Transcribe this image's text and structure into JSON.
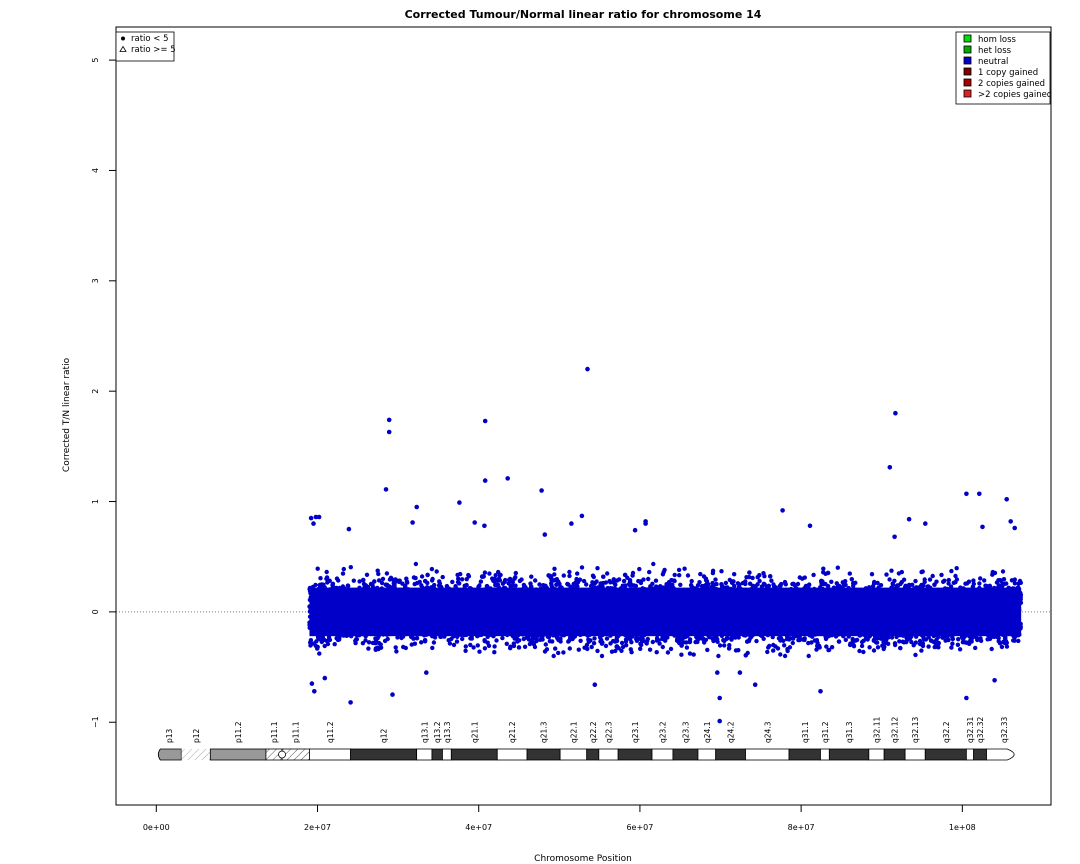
{
  "chart_data": {
    "type": "scatter",
    "title": "Corrected Tumour/Normal linear ratio for chromosome  14",
    "xlabel": "Chromosome Position",
    "ylabel": "Corrected T/N linear ratio",
    "xlim": [
      -5000000,
      111000000
    ],
    "ylim": [
      -1.75,
      5.3
    ],
    "x_ticks": [
      0,
      20000000,
      40000000,
      60000000,
      80000000,
      100000000
    ],
    "x_tick_labels": [
      "0e+00",
      "2e+07",
      "4e+07",
      "6e+07",
      "8e+07",
      "1e+08"
    ],
    "y_ticks": [
      -1,
      0,
      1,
      2,
      3,
      4,
      5
    ],
    "y_tick_labels": [
      "−1",
      "0",
      "1",
      "2",
      "3",
      "4",
      "5"
    ],
    "reference_line_y": 0,
    "point_color": "#0000c8",
    "shape_legend": {
      "position": "top-left",
      "entries": [
        {
          "label": "ratio < 5",
          "symbol": "dot"
        },
        {
          "label": "ratio >= 5",
          "symbol": "triangle"
        }
      ]
    },
    "copy_number_legend": {
      "position": "top-right",
      "entries": [
        {
          "label": "hom loss",
          "color": "#00dd00"
        },
        {
          "label": "het loss",
          "color": "#00aa00"
        },
        {
          "label": "neutral",
          "color": "#0000c8"
        },
        {
          "label": "1 copy gained",
          "color": "#800000"
        },
        {
          "label": "2 copies gained",
          "color": "#aa0000"
        },
        {
          "label": ">2 copies gained",
          "color": "#dd2222"
        }
      ]
    },
    "series": [
      {
        "name": "neutral",
        "dense_band": {
          "x_start": 19000000,
          "x_end": 107300000,
          "y_min": -0.35,
          "y_max": 0.45
        },
        "outliers": [
          {
            "x": 19200000,
            "y": 0.85
          },
          {
            "x": 19500000,
            "y": 0.8
          },
          {
            "x": 19800000,
            "y": 0.86
          },
          {
            "x": 20200000,
            "y": 0.86
          },
          {
            "x": 19300000,
            "y": -0.65
          },
          {
            "x": 19600000,
            "y": -0.72
          },
          {
            "x": 20900000,
            "y": -0.6
          },
          {
            "x": 23900000,
            "y": 0.75
          },
          {
            "x": 24100000,
            "y": -0.82
          },
          {
            "x": 28500000,
            "y": 1.11
          },
          {
            "x": 28900000,
            "y": 1.74
          },
          {
            "x": 28900000,
            "y": 1.63
          },
          {
            "x": 29300000,
            "y": -0.75
          },
          {
            "x": 31800000,
            "y": 0.81
          },
          {
            "x": 32300000,
            "y": 0.95
          },
          {
            "x": 33500000,
            "y": -0.55
          },
          {
            "x": 37600000,
            "y": 0.99
          },
          {
            "x": 39500000,
            "y": 0.81
          },
          {
            "x": 40800000,
            "y": 1.73
          },
          {
            "x": 40800000,
            "y": 1.19
          },
          {
            "x": 40700000,
            "y": 0.78
          },
          {
            "x": 43600000,
            "y": 1.21
          },
          {
            "x": 47800000,
            "y": 1.1
          },
          {
            "x": 48200000,
            "y": 0.7
          },
          {
            "x": 51500000,
            "y": 0.8
          },
          {
            "x": 52800000,
            "y": 0.87
          },
          {
            "x": 53500000,
            "y": 2.2
          },
          {
            "x": 54400000,
            "y": -0.66
          },
          {
            "x": 59400000,
            "y": 0.74
          },
          {
            "x": 60700000,
            "y": 0.82
          },
          {
            "x": 60700000,
            "y": 0.8
          },
          {
            "x": 69900000,
            "y": -0.78
          },
          {
            "x": 69900000,
            "y": -0.99
          },
          {
            "x": 69600000,
            "y": -0.55
          },
          {
            "x": 72400000,
            "y": -0.55
          },
          {
            "x": 74300000,
            "y": -0.66
          },
          {
            "x": 77700000,
            "y": 0.92
          },
          {
            "x": 81100000,
            "y": 0.78
          },
          {
            "x": 82400000,
            "y": -0.72
          },
          {
            "x": 91000000,
            "y": 1.31
          },
          {
            "x": 91700000,
            "y": 1.8
          },
          {
            "x": 91600000,
            "y": 0.68
          },
          {
            "x": 93400000,
            "y": 0.84
          },
          {
            "x": 95400000,
            "y": 0.8
          },
          {
            "x": 100500000,
            "y": 1.07
          },
          {
            "x": 100500000,
            "y": -0.78
          },
          {
            "x": 102100000,
            "y": 1.07
          },
          {
            "x": 102500000,
            "y": 0.77
          },
          {
            "x": 104000000,
            "y": -0.62
          },
          {
            "x": 105500000,
            "y": 1.02
          },
          {
            "x": 106000000,
            "y": 0.82
          },
          {
            "x": 106500000,
            "y": 0.76
          }
        ]
      }
    ],
    "ideogram": {
      "bands": [
        {
          "name": "p13",
          "start": 0,
          "end": 3100000,
          "stain": "gvar"
        },
        {
          "name": "p12",
          "start": 3100000,
          "end": 6700000,
          "stain": "stalk"
        },
        {
          "name": "p11.2",
          "start": 6700000,
          "end": 13600000,
          "stain": "gvar"
        },
        {
          "name": "p11.1",
          "start": 13600000,
          "end": 15600000,
          "stain": "acen"
        },
        {
          "name": "p11.1",
          "start": 15600000,
          "end": 19000000,
          "stain": "gvar_hatch"
        },
        {
          "name": "q11.2",
          "start": 19000000,
          "end": 24100000,
          "stain": "gneg"
        },
        {
          "name": "q12",
          "start": 24100000,
          "end": 32300000,
          "stain": "gpos100"
        },
        {
          "name": "q13.1",
          "start": 32300000,
          "end": 34200000,
          "stain": "gneg"
        },
        {
          "name": "q13.2",
          "start": 34200000,
          "end": 35500000,
          "stain": "gpos100"
        },
        {
          "name": "q13.3",
          "start": 35500000,
          "end": 36600000,
          "stain": "gneg"
        },
        {
          "name": "q21.1",
          "start": 36600000,
          "end": 42300000,
          "stain": "gpos100"
        },
        {
          "name": "q21.2",
          "start": 42300000,
          "end": 46000000,
          "stain": "gneg"
        },
        {
          "name": "q21.3",
          "start": 46000000,
          "end": 50100000,
          "stain": "gpos100"
        },
        {
          "name": "q22.1",
          "start": 50100000,
          "end": 53400000,
          "stain": "gneg"
        },
        {
          "name": "q22.2",
          "start": 53400000,
          "end": 54900000,
          "stain": "gpos100"
        },
        {
          "name": "q22.3",
          "start": 54900000,
          "end": 57300000,
          "stain": "gneg"
        },
        {
          "name": "q23.1",
          "start": 57300000,
          "end": 61500000,
          "stain": "gpos100"
        },
        {
          "name": "q23.2",
          "start": 61500000,
          "end": 64100000,
          "stain": "gneg"
        },
        {
          "name": "q23.3",
          "start": 64100000,
          "end": 67200000,
          "stain": "gpos100"
        },
        {
          "name": "q24.1",
          "start": 67200000,
          "end": 69400000,
          "stain": "gneg"
        },
        {
          "name": "q24.2",
          "start": 69400000,
          "end": 73100000,
          "stain": "gpos100"
        },
        {
          "name": "q24.3",
          "start": 73100000,
          "end": 78500000,
          "stain": "gneg"
        },
        {
          "name": "q31.1",
          "start": 78500000,
          "end": 82400000,
          "stain": "gpos100"
        },
        {
          "name": "q31.2",
          "start": 82400000,
          "end": 83500000,
          "stain": "gneg"
        },
        {
          "name": "q31.3",
          "start": 83500000,
          "end": 88400000,
          "stain": "gpos100"
        },
        {
          "name": "q32.11",
          "start": 88400000,
          "end": 90300000,
          "stain": "gneg"
        },
        {
          "name": "q32.12",
          "start": 90300000,
          "end": 92900000,
          "stain": "gpos100"
        },
        {
          "name": "q32.13",
          "start": 92900000,
          "end": 95400000,
          "stain": "gneg"
        },
        {
          "name": "q32.2",
          "start": 95400000,
          "end": 100500000,
          "stain": "gpos100"
        },
        {
          "name": "q32.31",
          "start": 100500000,
          "end": 101400000,
          "stain": "gneg"
        },
        {
          "name": "q32.32",
          "start": 101400000,
          "end": 103000000,
          "stain": "gpos100"
        },
        {
          "name": "q32.33",
          "start": 103000000,
          "end": 107300000,
          "stain": "gneg"
        }
      ]
    }
  }
}
